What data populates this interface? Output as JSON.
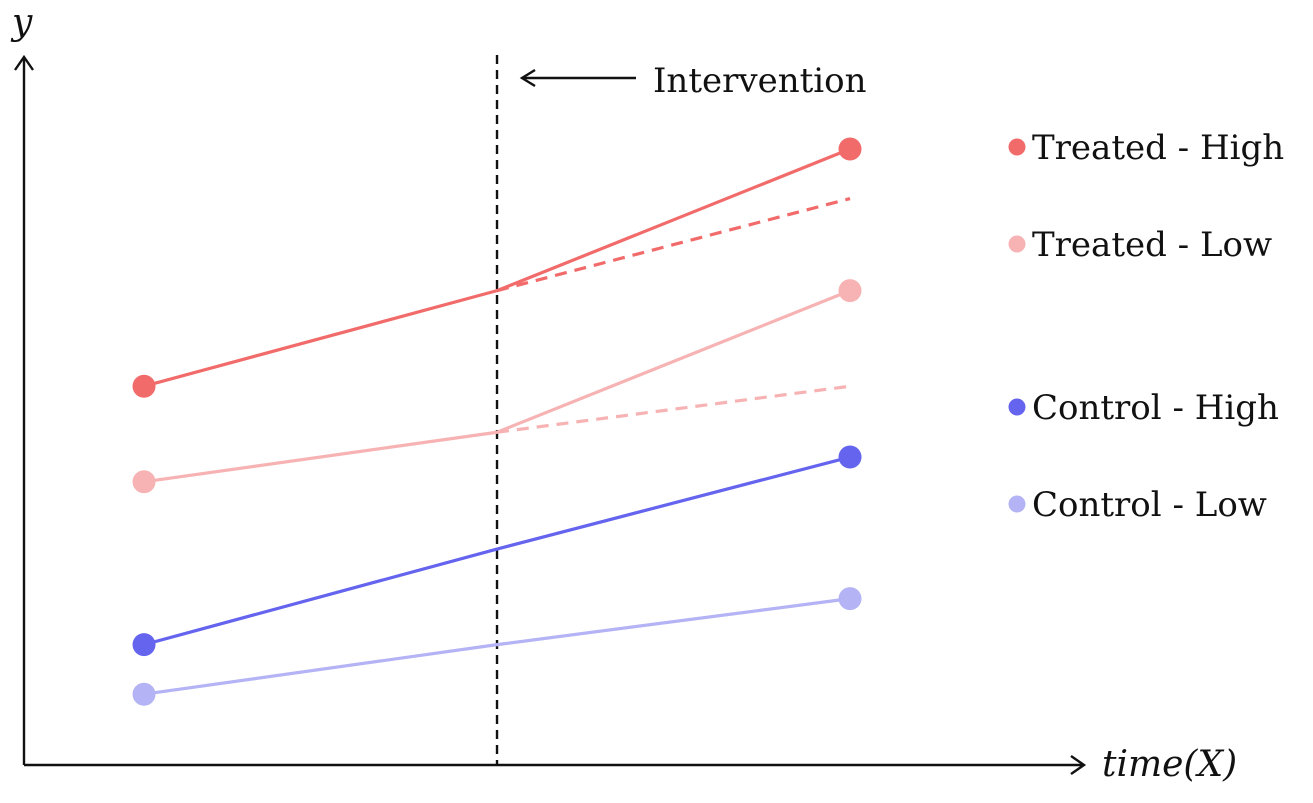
{
  "chart_data": {
    "type": "line",
    "xlabel": "time(X)",
    "ylabel": "y",
    "x": [
      0,
      1,
      2
    ],
    "xlim": [
      -0.34,
      2.66
    ],
    "ylim": [
      0,
      1
    ],
    "grid": false,
    "legend_placement": "right",
    "intervention": {
      "x": 1,
      "label": "Intervention"
    },
    "series": [
      {
        "name": "Treated - High",
        "color": "#f26b6b",
        "values": [
          0.535,
          0.67,
          0.87
        ],
        "counterfactual": [
          0.67,
          0.8
        ]
      },
      {
        "name": "Treated - Low",
        "color": "#f7b3b3",
        "values": [
          0.4,
          0.47,
          0.67
        ],
        "counterfactual": [
          0.47,
          0.535
        ]
      },
      {
        "name": "Control - High",
        "color": "#6464ee",
        "values": [
          0.17,
          0.305,
          0.435
        ],
        "counterfactual": null
      },
      {
        "name": "Control - Low",
        "color": "#b3b3f5",
        "values": [
          0.1,
          0.17,
          0.235
        ],
        "counterfactual": null
      }
    ]
  }
}
